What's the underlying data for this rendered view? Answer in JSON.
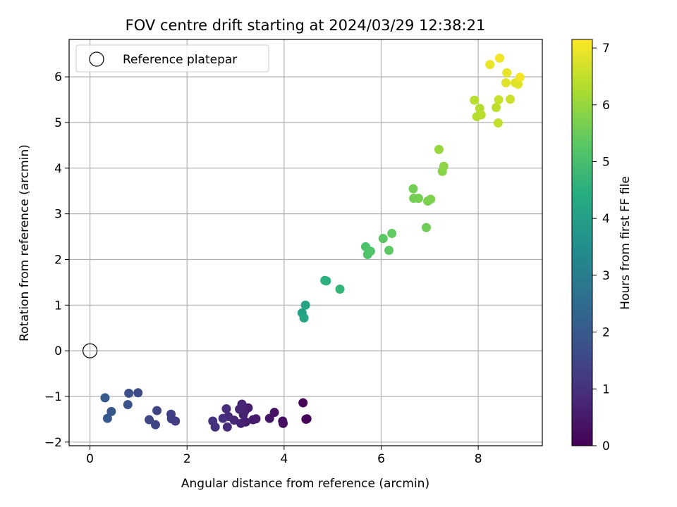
{
  "chart_data": {
    "type": "scatter",
    "title": "FOV centre drift starting at 2024/03/29 12:38:21",
    "xlabel": "Angular distance from reference (arcmin)",
    "ylabel": "Rotation from reference (arcmin)",
    "xlim": [
      -0.43,
      9.32
    ],
    "ylim": [
      -2.08,
      6.82
    ],
    "xticks": [
      0,
      2,
      4,
      6,
      8
    ],
    "yticks": [
      -2,
      -1,
      0,
      1,
      2,
      3,
      4,
      5,
      6
    ],
    "grid": true,
    "legend": {
      "placement": "top-left",
      "entries": [
        "Reference platepar"
      ]
    },
    "reference_point": {
      "x": 0,
      "y": 0,
      "label": "Reference platepar"
    },
    "colorbar": {
      "label": "Hours from first FF file",
      "min": 0,
      "max": 7.15,
      "ticks": [
        0,
        1,
        2,
        3,
        4,
        5,
        6,
        7
      ],
      "colormap": "viridis"
    },
    "points": [
      {
        "x": 4.45,
        "y": -1.5,
        "c": 0.02
      },
      {
        "x": 4.47,
        "y": -1.49,
        "c": 0.05
      },
      {
        "x": 4.39,
        "y": -1.14,
        "c": 0.1
      },
      {
        "x": 3.98,
        "y": -1.59,
        "c": 0.2
      },
      {
        "x": 3.97,
        "y": -1.54,
        "c": 0.25
      },
      {
        "x": 3.8,
        "y": -1.35,
        "c": 0.35
      },
      {
        "x": 3.7,
        "y": -1.48,
        "c": 0.4
      },
      {
        "x": 3.42,
        "y": -1.49,
        "c": 0.5
      },
      {
        "x": 3.36,
        "y": -1.51,
        "c": 0.52
      },
      {
        "x": 3.26,
        "y": -1.25,
        "c": 0.58
      },
      {
        "x": 3.21,
        "y": -1.56,
        "c": 0.62
      },
      {
        "x": 3.19,
        "y": -1.32,
        "c": 0.65
      },
      {
        "x": 3.16,
        "y": -1.4,
        "c": 0.68
      },
      {
        "x": 3.13,
        "y": -1.17,
        "c": 0.7
      },
      {
        "x": 3.11,
        "y": -1.59,
        "c": 0.72
      },
      {
        "x": 3.08,
        "y": -1.28,
        "c": 0.75
      },
      {
        "x": 2.97,
        "y": -1.52,
        "c": 0.8
      },
      {
        "x": 2.85,
        "y": -1.44,
        "c": 0.85
      },
      {
        "x": 2.83,
        "y": -1.67,
        "c": 0.88
      },
      {
        "x": 2.81,
        "y": -1.27,
        "c": 0.9
      },
      {
        "x": 2.74,
        "y": -1.48,
        "c": 0.95
      },
      {
        "x": 2.58,
        "y": -1.67,
        "c": 1.02
      },
      {
        "x": 2.53,
        "y": -1.54,
        "c": 1.05
      },
      {
        "x": 1.76,
        "y": -1.54,
        "c": 1.28
      },
      {
        "x": 1.68,
        "y": -1.49,
        "c": 1.32
      },
      {
        "x": 1.67,
        "y": -1.39,
        "c": 1.34
      },
      {
        "x": 1.38,
        "y": -1.31,
        "c": 1.45
      },
      {
        "x": 1.35,
        "y": -1.62,
        "c": 1.48
      },
      {
        "x": 1.22,
        "y": -1.51,
        "c": 1.52
      },
      {
        "x": 0.99,
        "y": -0.92,
        "c": 1.65
      },
      {
        "x": 0.8,
        "y": -0.93,
        "c": 1.75
      },
      {
        "x": 0.78,
        "y": -1.18,
        "c": 1.78
      },
      {
        "x": 0.44,
        "y": -1.33,
        "c": 1.95
      },
      {
        "x": 0.36,
        "y": -1.48,
        "c": 2.0
      },
      {
        "x": 0.31,
        "y": -1.03,
        "c": 2.05
      },
      {
        "x": 4.37,
        "y": 0.83,
        "c": 4.1
      },
      {
        "x": 4.44,
        "y": 1.0,
        "c": 4.2
      },
      {
        "x": 4.41,
        "y": 0.72,
        "c": 4.15
      },
      {
        "x": 4.84,
        "y": 1.54,
        "c": 4.5
      },
      {
        "x": 4.87,
        "y": 1.53,
        "c": 4.52
      },
      {
        "x": 5.15,
        "y": 1.35,
        "c": 4.7
      },
      {
        "x": 5.68,
        "y": 2.28,
        "c": 5.1
      },
      {
        "x": 5.72,
        "y": 2.11,
        "c": 5.12
      },
      {
        "x": 5.78,
        "y": 2.18,
        "c": 5.15
      },
      {
        "x": 6.04,
        "y": 2.46,
        "c": 5.3
      },
      {
        "x": 6.16,
        "y": 2.2,
        "c": 5.35
      },
      {
        "x": 6.22,
        "y": 2.57,
        "c": 5.4
      },
      {
        "x": 6.66,
        "y": 3.55,
        "c": 5.6
      },
      {
        "x": 6.67,
        "y": 3.34,
        "c": 5.62
      },
      {
        "x": 6.77,
        "y": 3.34,
        "c": 5.65
      },
      {
        "x": 6.93,
        "y": 2.7,
        "c": 5.55
      },
      {
        "x": 6.96,
        "y": 3.28,
        "c": 5.7
      },
      {
        "x": 7.02,
        "y": 3.32,
        "c": 5.72
      },
      {
        "x": 7.19,
        "y": 4.41,
        "c": 6.0
      },
      {
        "x": 7.26,
        "y": 3.93,
        "c": 5.85
      },
      {
        "x": 7.29,
        "y": 4.04,
        "c": 5.9
      },
      {
        "x": 7.92,
        "y": 5.49,
        "c": 6.4
      },
      {
        "x": 7.97,
        "y": 5.13,
        "c": 6.3
      },
      {
        "x": 8.03,
        "y": 5.31,
        "c": 6.35
      },
      {
        "x": 8.06,
        "y": 5.17,
        "c": 6.38
      },
      {
        "x": 8.24,
        "y": 6.27,
        "c": 6.95
      },
      {
        "x": 8.37,
        "y": 5.33,
        "c": 6.45
      },
      {
        "x": 8.41,
        "y": 4.99,
        "c": 6.5
      },
      {
        "x": 8.42,
        "y": 5.5,
        "c": 6.55
      },
      {
        "x": 8.44,
        "y": 6.41,
        "c": 7.0
      },
      {
        "x": 8.57,
        "y": 5.87,
        "c": 6.8
      },
      {
        "x": 8.59,
        "y": 6.09,
        "c": 6.9
      },
      {
        "x": 8.66,
        "y": 5.51,
        "c": 6.6
      },
      {
        "x": 8.76,
        "y": 5.87,
        "c": 6.85
      },
      {
        "x": 8.82,
        "y": 5.84,
        "c": 6.82
      },
      {
        "x": 8.86,
        "y": 5.99,
        "c": 7.05
      }
    ]
  }
}
